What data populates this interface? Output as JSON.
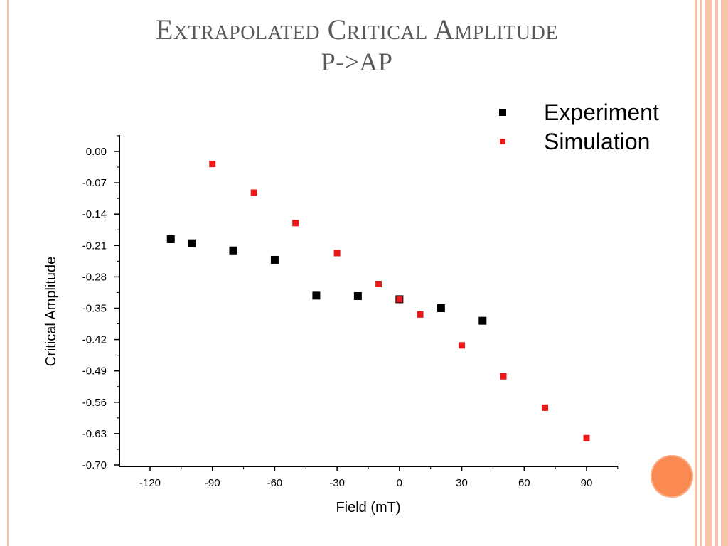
{
  "slide": {
    "title": "Extrapolated Critical Amplitude",
    "subtitle": "P->AP",
    "accent_color": "#f7c4aa",
    "dot_color": "#fb8a52"
  },
  "chart_data": {
    "type": "scatter",
    "title": "",
    "xlabel": "Field (mT)",
    "ylabel": "Critical Amplitude",
    "xlim": [
      -135,
      105
    ],
    "ylim": [
      -0.7,
      0.0
    ],
    "x_ticks": [
      -120,
      -90,
      -60,
      -30,
      0,
      30,
      60,
      90
    ],
    "x_tick_labels": [
      "-120",
      "-90",
      "-60",
      "-30",
      "0",
      "30",
      "60",
      "90"
    ],
    "y_ticks": [
      0.0,
      -0.07,
      -0.14,
      -0.21,
      -0.28,
      -0.35,
      -0.42,
      -0.49,
      -0.56,
      -0.63,
      -0.7
    ],
    "y_tick_labels": [
      "0.00",
      "-0.07",
      "-0.14",
      "-0.21",
      "-0.28",
      "-0.35",
      "-0.42",
      "-0.49",
      "-0.56",
      "-0.63",
      "-0.70"
    ],
    "grid": false,
    "legend_position": "top-right",
    "series": [
      {
        "name": "Experiment",
        "color": "#000000",
        "marker": "square",
        "x": [
          -110,
          -100,
          -80,
          -60,
          -40,
          -20,
          0,
          20,
          40
        ],
        "y": [
          -0.196,
          -0.205,
          -0.221,
          -0.242,
          -0.322,
          -0.323,
          -0.33,
          -0.35,
          -0.378
        ]
      },
      {
        "name": "Simulation",
        "color": "#e8191a",
        "marker": "square",
        "x": [
          -90,
          -70,
          -50,
          -30,
          -10,
          0,
          10,
          30,
          50,
          70,
          90
        ],
        "y": [
          -0.028,
          -0.092,
          -0.16,
          -0.227,
          -0.296,
          -0.33,
          -0.364,
          -0.433,
          -0.502,
          -0.572,
          -0.64
        ]
      }
    ]
  }
}
